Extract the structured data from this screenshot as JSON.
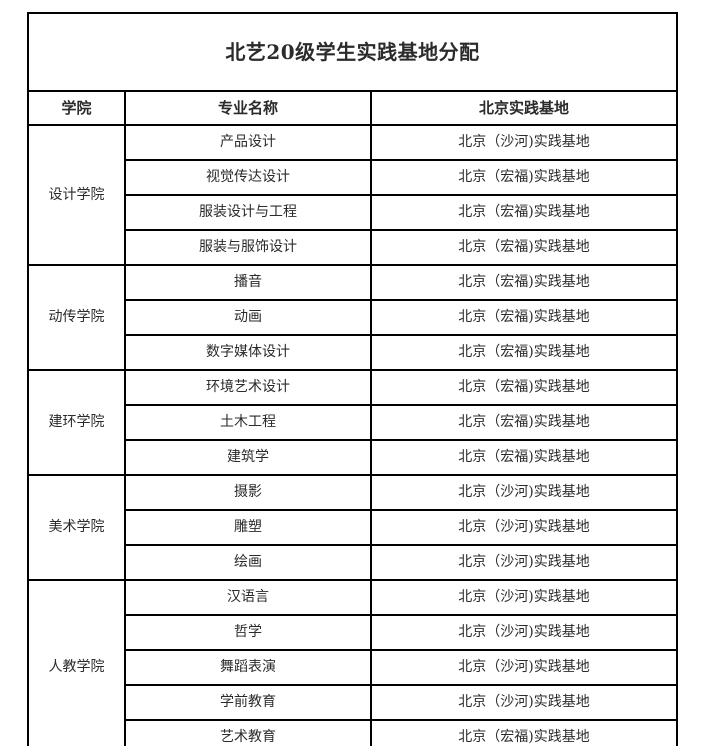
{
  "colors": {
    "border": "#000000",
    "text": "#2b2b2b",
    "background": "#ffffff"
  },
  "table": {
    "title": "北艺20级学生实践基地分配",
    "columns": [
      "学院",
      "专业名称",
      "北京实践基地"
    ],
    "groups": [
      {
        "college": "设计学院",
        "rows": [
          {
            "major": "产品设计",
            "base": "北京（沙河)实践基地"
          },
          {
            "major": "视觉传达设计",
            "base": "北京（宏福)实践基地"
          },
          {
            "major": "服装设计与工程",
            "base": "北京（宏福)实践基地"
          },
          {
            "major": "服装与服饰设计",
            "base": "北京（宏福)实践基地"
          }
        ]
      },
      {
        "college": "动传学院",
        "rows": [
          {
            "major": "播音",
            "base": "北京（宏福)实践基地"
          },
          {
            "major": "动画",
            "base": "北京（宏福)实践基地"
          },
          {
            "major": "数字媒体设计",
            "base": "北京（宏福)实践基地"
          }
        ]
      },
      {
        "college": "建环学院",
        "rows": [
          {
            "major": "环境艺术设计",
            "base": "北京（宏福)实践基地"
          },
          {
            "major": "土木工程",
            "base": "北京（宏福)实践基地"
          },
          {
            "major": "建筑学",
            "base": "北京（宏福)实践基地"
          }
        ]
      },
      {
        "college": "美术学院",
        "rows": [
          {
            "major": "摄影",
            "base": "北京（沙河)实践基地"
          },
          {
            "major": "雕塑",
            "base": "北京（沙河)实践基地"
          },
          {
            "major": "绘画",
            "base": "北京（沙河)实践基地"
          }
        ]
      },
      {
        "college": "人教学院",
        "rows": [
          {
            "major": "汉语言",
            "base": "北京（沙河)实践基地"
          },
          {
            "major": "哲学",
            "base": "北京（沙河)实践基地"
          },
          {
            "major": "舞蹈表演",
            "base": "北京（沙河)实践基地"
          },
          {
            "major": "学前教育",
            "base": "北京（沙河)实践基地"
          },
          {
            "major": "艺术教育",
            "base": "北京（宏福)实践基地"
          }
        ]
      }
    ]
  }
}
